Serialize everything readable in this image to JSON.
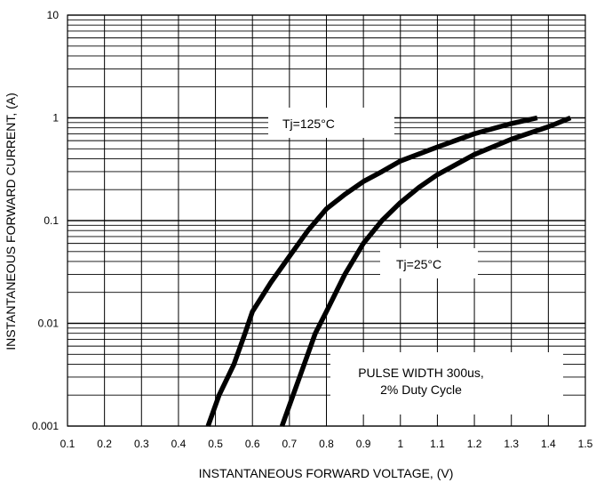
{
  "chart_data": {
    "type": "line",
    "title": "",
    "xlabel": "INSTANTANEOUS FORWARD VOLTAGE, (V)",
    "ylabel": "INSTANTANEOUS FORWARD CURRENT, (A)",
    "x_scale": "linear",
    "y_scale": "log",
    "xlim": [
      0.1,
      1.5
    ],
    "ylim": [
      0.001,
      10
    ],
    "grid": true,
    "x_ticks": [
      "0.1",
      "0.2",
      "0.3",
      "0.4",
      "0.5",
      "0.6",
      "0.7",
      "0.8",
      "0.9",
      "1",
      "1.1",
      "1.2",
      "1.3",
      "1.4",
      "1.5"
    ],
    "y_ticks": [
      "0.001",
      "0.01",
      "0.1",
      "1",
      "10"
    ],
    "annotations": {
      "t125": "Tj=125°C",
      "t25": "Tj=25°C",
      "pulse_line1": "PULSE WIDTH 300us,",
      "pulse_line2": "2% Duty Cycle"
    },
    "series": [
      {
        "points": [
          [
            0.48,
            0.001
          ],
          [
            0.51,
            0.002
          ],
          [
            0.55,
            0.004
          ],
          [
            0.58,
            0.008
          ],
          [
            0.6,
            0.013
          ],
          [
            0.65,
            0.025
          ],
          [
            0.7,
            0.045
          ],
          [
            0.75,
            0.08
          ],
          [
            0.8,
            0.13
          ],
          [
            0.85,
            0.18
          ],
          [
            0.9,
            0.24
          ],
          [
            0.95,
            0.3
          ],
          [
            1.0,
            0.38
          ],
          [
            1.1,
            0.52
          ],
          [
            1.2,
            0.7
          ],
          [
            1.3,
            0.88
          ],
          [
            1.37,
            1.0
          ]
        ]
      },
      {
        "points": [
          [
            0.68,
            0.001
          ],
          [
            0.71,
            0.002
          ],
          [
            0.74,
            0.004
          ],
          [
            0.77,
            0.008
          ],
          [
            0.8,
            0.013
          ],
          [
            0.85,
            0.03
          ],
          [
            0.9,
            0.06
          ],
          [
            0.95,
            0.1
          ],
          [
            1.0,
            0.15
          ],
          [
            1.05,
            0.21
          ],
          [
            1.1,
            0.28
          ],
          [
            1.2,
            0.44
          ],
          [
            1.3,
            0.62
          ],
          [
            1.4,
            0.82
          ],
          [
            1.46,
            1.0
          ]
        ]
      }
    ]
  }
}
